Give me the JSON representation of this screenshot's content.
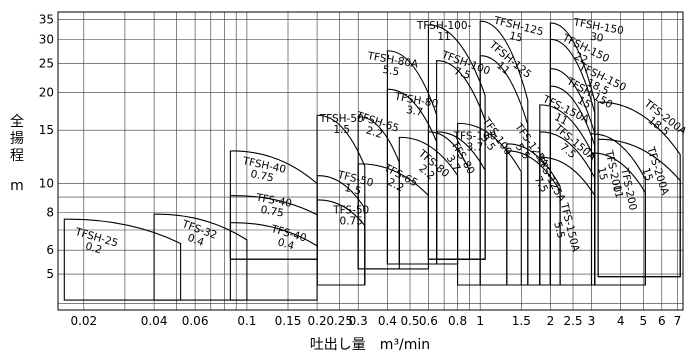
{
  "chart_data": {
    "type": "pump-selection-chart",
    "title": "",
    "xlabel": "吐出し量　m³/min",
    "ylabel_chars": [
      "全",
      "揚",
      "程"
    ],
    "ylabel_unit": "m",
    "xscale": "log",
    "yscale": "log",
    "xlim": [
      0.0155,
      7.4
    ],
    "ylim": [
      3.8,
      37
    ],
    "grid": true,
    "x_ticks": [
      {
        "value": 0.02,
        "label": "0.02"
      },
      {
        "value": 0.04,
        "label": "0.04"
      },
      {
        "value": 0.06,
        "label": "0.06"
      },
      {
        "value": 0.1,
        "label": "0.1"
      },
      {
        "value": 0.15,
        "label": "0.15"
      },
      {
        "value": 0.2,
        "label": "0.2"
      },
      {
        "value": 0.25,
        "label": "0.25"
      },
      {
        "value": 0.3,
        "label": "0.3"
      },
      {
        "value": 0.4,
        "label": "0.4"
      },
      {
        "value": 0.5,
        "label": "0.5"
      },
      {
        "value": 0.6,
        "label": "0.6"
      },
      {
        "value": 0.8,
        "label": "0.8"
      },
      {
        "value": 1,
        "label": "1"
      },
      {
        "value": 1.5,
        "label": "1.5"
      },
      {
        "value": 2,
        "label": "2"
      },
      {
        "value": 2.5,
        "label": "2.5"
      },
      {
        "value": 3,
        "label": "3"
      },
      {
        "value": 4,
        "label": "4"
      },
      {
        "value": 5,
        "label": "5"
      },
      {
        "value": 6,
        "label": "6"
      },
      {
        "value": 7,
        "label": "7"
      }
    ],
    "y_ticks": [
      {
        "value": 5,
        "label": "5"
      },
      {
        "value": 6,
        "label": "6"
      },
      {
        "value": 8,
        "label": "8"
      },
      {
        "value": 10,
        "label": "10"
      },
      {
        "value": 15,
        "label": "15"
      },
      {
        "value": 20,
        "label": "20"
      },
      {
        "value": 25,
        "label": "25"
      },
      {
        "value": 30,
        "label": "30"
      },
      {
        "value": 35,
        "label": "35"
      }
    ],
    "x_grid": [
      0.02,
      0.03,
      0.04,
      0.05,
      0.06,
      0.07,
      0.08,
      0.09,
      0.1,
      0.15,
      0.2,
      0.25,
      0.3,
      0.4,
      0.5,
      0.6,
      0.7,
      0.8,
      0.9,
      1,
      1.5,
      2,
      2.5,
      3,
      4,
      5,
      6,
      7
    ],
    "y_grid": [
      4,
      5,
      6,
      7,
      8,
      9,
      10,
      15,
      20,
      25,
      30,
      35
    ],
    "regions": [
      {
        "lines": [
          "TFSH-25",
          "0.2"
        ],
        "xmin": 0.0165,
        "xmax": 0.052,
        "hmax": 7.6,
        "hmin": 4.1
      },
      {
        "lines": [
          "TFS-32",
          "0.4"
        ],
        "xmin": 0.04,
        "xmax": 0.1,
        "hmax": 7.9,
        "hmin": 4.1
      },
      {
        "lines": [
          "TFSH-40",
          "0.75"
        ],
        "xmin": 0.085,
        "xmax": 0.2,
        "hmax": 12.8,
        "hmin": 5.6
      },
      {
        "lines": [
          "TFS-40",
          "0.75"
        ],
        "xmin": 0.085,
        "xmax": 0.2,
        "hmax": 9.1,
        "hmin": 5.6
      },
      {
        "lines": [
          "TFS-40",
          "0.4"
        ],
        "xmin": 0.085,
        "xmax": 0.2,
        "hmax": 7.4,
        "hmin": 4.1
      },
      {
        "lines": [
          "TFSH-50",
          "1.5"
        ],
        "xmin": 0.2,
        "xmax": 0.32,
        "hmax": 16.8,
        "hmin": 4.6
      },
      {
        "lines": [
          "TFS-50",
          "1.5"
        ],
        "xmin": 0.2,
        "xmax": 0.32,
        "hmax": 10.6,
        "hmin": 4.6
      },
      {
        "lines": [
          "TFS-50",
          "0.75"
        ],
        "xmin": 0.2,
        "xmax": 0.32,
        "hmax": 8.8,
        "hmin": 4.6
      },
      {
        "lines": [
          "TFSH-65",
          "2.2"
        ],
        "xmin": 0.3,
        "xmax": 0.45,
        "hmax": 16.6,
        "hmin": 5.2
      },
      {
        "lines": [
          "TFS-65",
          "2.2"
        ],
        "xmin": 0.3,
        "xmax": 0.6,
        "hmax": 11.6,
        "hmin": 5.2
      },
      {
        "lines": [
          "TFSH-80A",
          "5.5"
        ],
        "xmin": 0.4,
        "xmax": 0.65,
        "hmax": 27.5,
        "hmin": 5.4
      },
      {
        "lines": [
          "TFSH-80",
          "3.7"
        ],
        "xmin": 0.4,
        "xmax": 0.65,
        "hmax": 20.5,
        "hmin": 5.4
      },
      {
        "lines": [
          "TFS-80",
          "2.2"
        ],
        "xmin": 0.45,
        "xmax": 0.8,
        "hmax": 14.2,
        "hmin": 5.4
      },
      {
        "lines": [
          "TFS-80",
          "3.7"
        ],
        "xmin": 0.6,
        "xmax": 0.9,
        "hmax": 14.8,
        "hmin": 5.6
      },
      {
        "lines": [
          "TFSH-100-",
          "11"
        ],
        "xmin": 0.6,
        "xmax": 1.05,
        "hmax": 33.5,
        "hmin": 5.6
      },
      {
        "lines": [
          "TFSH-100",
          "7.5"
        ],
        "xmin": 0.65,
        "xmax": 1.05,
        "hmax": 25.5,
        "hmin": 5.6
      },
      {
        "lines": [
          "TFS-100",
          "3.7"
        ],
        "xmin": 0.65,
        "xmax": 1.05,
        "hmax": 14.8,
        "hmin": 5.6
      },
      {
        "lines": [
          "TFS-100",
          "5.5"
        ],
        "xmin": 0.8,
        "xmax": 1.5,
        "hmax": 15.8,
        "hmin": 4.6
      },
      {
        "lines": [
          "TFSH-125",
          "15"
        ],
        "xmin": 1,
        "xmax": 1.6,
        "hmax": 34.5,
        "hmin": 4.6
      },
      {
        "lines": [
          "TFSH-125",
          "11"
        ],
        "xmin": 1,
        "xmax": 1.6,
        "hmax": 26.5,
        "hmin": 4.6
      },
      {
        "lines": [
          "TFS-125A",
          "5.5"
        ],
        "xmin": 1.3,
        "xmax": 2.2,
        "hmax": 13.5,
        "hmin": 4.6
      },
      {
        "lines": [
          "TFS-125A",
          "7.5"
        ],
        "xmin": 1.3,
        "xmax": 2.2,
        "hmax": 12.8,
        "hmin": 4.6
      },
      {
        "lines": [
          "TFSH-150",
          "30"
        ],
        "xmin": 2,
        "xmax": 3.1,
        "hmax": 34,
        "hmin": 4.6
      },
      {
        "lines": [
          "TFSH-150",
          "22"
        ],
        "xmin": 2,
        "xmax": 3.1,
        "hmax": 30,
        "hmin": 4.6
      },
      {
        "lines": [
          "TFSH-150",
          "18.5"
        ],
        "xmin": 2,
        "xmax": 3.1,
        "hmax": 24,
        "hmin": 4.6
      },
      {
        "lines": [
          "TFSH-150",
          "15"
        ],
        "xmin": 2,
        "xmax": 3.1,
        "hmax": 21,
        "hmin": 4.6
      },
      {
        "lines": [
          "TFS-150A",
          "11"
        ],
        "xmin": 1.8,
        "xmax": 3.1,
        "hmax": 18.2,
        "hmin": 4.6
      },
      {
        "lines": [
          "TFS-150A",
          "7.5"
        ],
        "xmin": 1.8,
        "xmax": 3.1,
        "hmax": 14.8,
        "hmin": 4.6
      },
      {
        "lines": [
          "TFS-150A",
          "5.5"
        ],
        "xmin": 1.8,
        "xmax": 3.1,
        "hmax": 12.2,
        "hmin": 4.6
      },
      {
        "lines": [
          "TFS-200",
          "15"
        ],
        "xmin": 3,
        "xmax": 5.1,
        "hmax": 14.6,
        "hmin": 4.6
      },
      {
        "lines": [
          "TFS-200",
          "11"
        ],
        "xmin": 3,
        "xmax": 5.1,
        "hmax": 12.6,
        "hmin": 4.6
      },
      {
        "lines": [
          "TFS-200A",
          "18.5"
        ],
        "xmin": 3.2,
        "xmax": 7.2,
        "hmax": 18.6,
        "hmin": 4.9
      },
      {
        "lines": [
          "TFS-200A",
          "15"
        ],
        "xmin": 3.2,
        "xmax": 7.2,
        "hmax": 14,
        "hmin": 4.9
      }
    ],
    "labels": [
      {
        "lines": [
          "TFSH-25",
          "0.2"
        ],
        "x": 0.0225,
        "y": 6.45,
        "rot": 16
      },
      {
        "lines": [
          "TFS-32",
          "0.4"
        ],
        "x": 0.062,
        "y": 6.85,
        "rot": 20
      },
      {
        "lines": [
          "TFSH-40",
          "0.75"
        ],
        "x": 0.118,
        "y": 11.2,
        "rot": 12
      },
      {
        "lines": [
          "TFS-40",
          "0.75"
        ],
        "x": 0.13,
        "y": 8.55,
        "rot": 10
      },
      {
        "lines": [
          "TFS-40",
          "0.4"
        ],
        "x": 0.15,
        "y": 6.65,
        "rot": 16
      },
      {
        "lines": [
          "TFSH-50",
          "1.5"
        ],
        "x": 0.255,
        "y": 16.0,
        "rot": 0
      },
      {
        "lines": [
          "TFS-50",
          "1.5"
        ],
        "x": 0.29,
        "y": 10.1,
        "rot": 14
      },
      {
        "lines": [
          "TFS-50",
          "0.75"
        ],
        "x": 0.28,
        "y": 7.95,
        "rot": 0
      },
      {
        "lines": [
          "TFSH-65",
          "2.2"
        ],
        "x": 0.36,
        "y": 15.6,
        "rot": 18
      },
      {
        "lines": [
          "TFS-65",
          "2.2"
        ],
        "x": 0.45,
        "y": 10.4,
        "rot": 28
      },
      {
        "lines": [
          "TFSH-80A",
          "5.5"
        ],
        "x": 0.42,
        "y": 25.0,
        "rot": 10
      },
      {
        "lines": [
          "TFSH-80",
          "3.7"
        ],
        "x": 0.53,
        "y": 18.4,
        "rot": 10
      },
      {
        "lines": [
          "TFS-80",
          "2.2"
        ],
        "x": 0.62,
        "y": 11.4,
        "rot": 40
      },
      {
        "lines": [
          "TFS-80",
          "3.7"
        ],
        "x": 0.82,
        "y": 12.0,
        "rot": 60
      },
      {
        "lines": [
          "TFSH-100-",
          "11"
        ],
        "x": 0.7,
        "y": 32.5,
        "rot": 0
      },
      {
        "lines": [
          "TFSH-100",
          "7.5"
        ],
        "x": 0.86,
        "y": 24.5,
        "rot": 20
      },
      {
        "lines": [
          "TFS-100",
          "3.7"
        ],
        "x": 0.95,
        "y": 14.0,
        "rot": 0
      },
      {
        "lines": [
          "TFS-100",
          "5.5"
        ],
        "x": 1.15,
        "y": 14.1,
        "rot": 55
      },
      {
        "lines": [
          "TFSH-125",
          "15"
        ],
        "x": 1.45,
        "y": 32.4,
        "rot": 14
      },
      {
        "lines": [
          "TFSH-125",
          "11"
        ],
        "x": 1.32,
        "y": 25.2,
        "rot": 40
      },
      {
        "lines": [
          "TFS-125A",
          "5.5"
        ],
        "x": 1.62,
        "y": 13.2,
        "rot": 55
      },
      {
        "lines": [
          "TFS-125A",
          "7.5"
        ],
        "x": 1.95,
        "y": 10.2,
        "rot": 62
      },
      {
        "lines": [
          "TFSH-150",
          "30"
        ],
        "x": 3.2,
        "y": 32.3,
        "rot": 10
      },
      {
        "lines": [
          "TFSH-150",
          "22"
        ],
        "x": 2.8,
        "y": 27.4,
        "rot": 26
      },
      {
        "lines": [
          "TFSH-150",
          "18.5"
        ],
        "x": 3.3,
        "y": 22.0,
        "rot": 26
      },
      {
        "lines": [
          "TFSH-150",
          "15"
        ],
        "x": 2.9,
        "y": 19.5,
        "rot": 30
      },
      {
        "lines": [
          "TFS-150A",
          "11"
        ],
        "x": 2.3,
        "y": 17.2,
        "rot": 26
      },
      {
        "lines": [
          "TFS-150A",
          "7.5"
        ],
        "x": 2.5,
        "y": 13.4,
        "rot": 40
      },
      {
        "lines": [
          "TFS-150A",
          "5.5"
        ],
        "x": 2.35,
        "y": 7.1,
        "rot": 76
      },
      {
        "lines": [
          "TFS-200",
          "15"
        ],
        "x": 3.6,
        "y": 10.9,
        "rot": 78
      },
      {
        "lines": [
          "TFS-200",
          "11"
        ],
        "x": 4.2,
        "y": 9.5,
        "rot": 78
      },
      {
        "lines": [
          "TFS-200A",
          "18.5"
        ],
        "x": 6.1,
        "y": 16.2,
        "rot": 38
      },
      {
        "lines": [
          "TFS-200A",
          "15"
        ],
        "x": 5.6,
        "y": 10.9,
        "rot": 72
      }
    ]
  }
}
